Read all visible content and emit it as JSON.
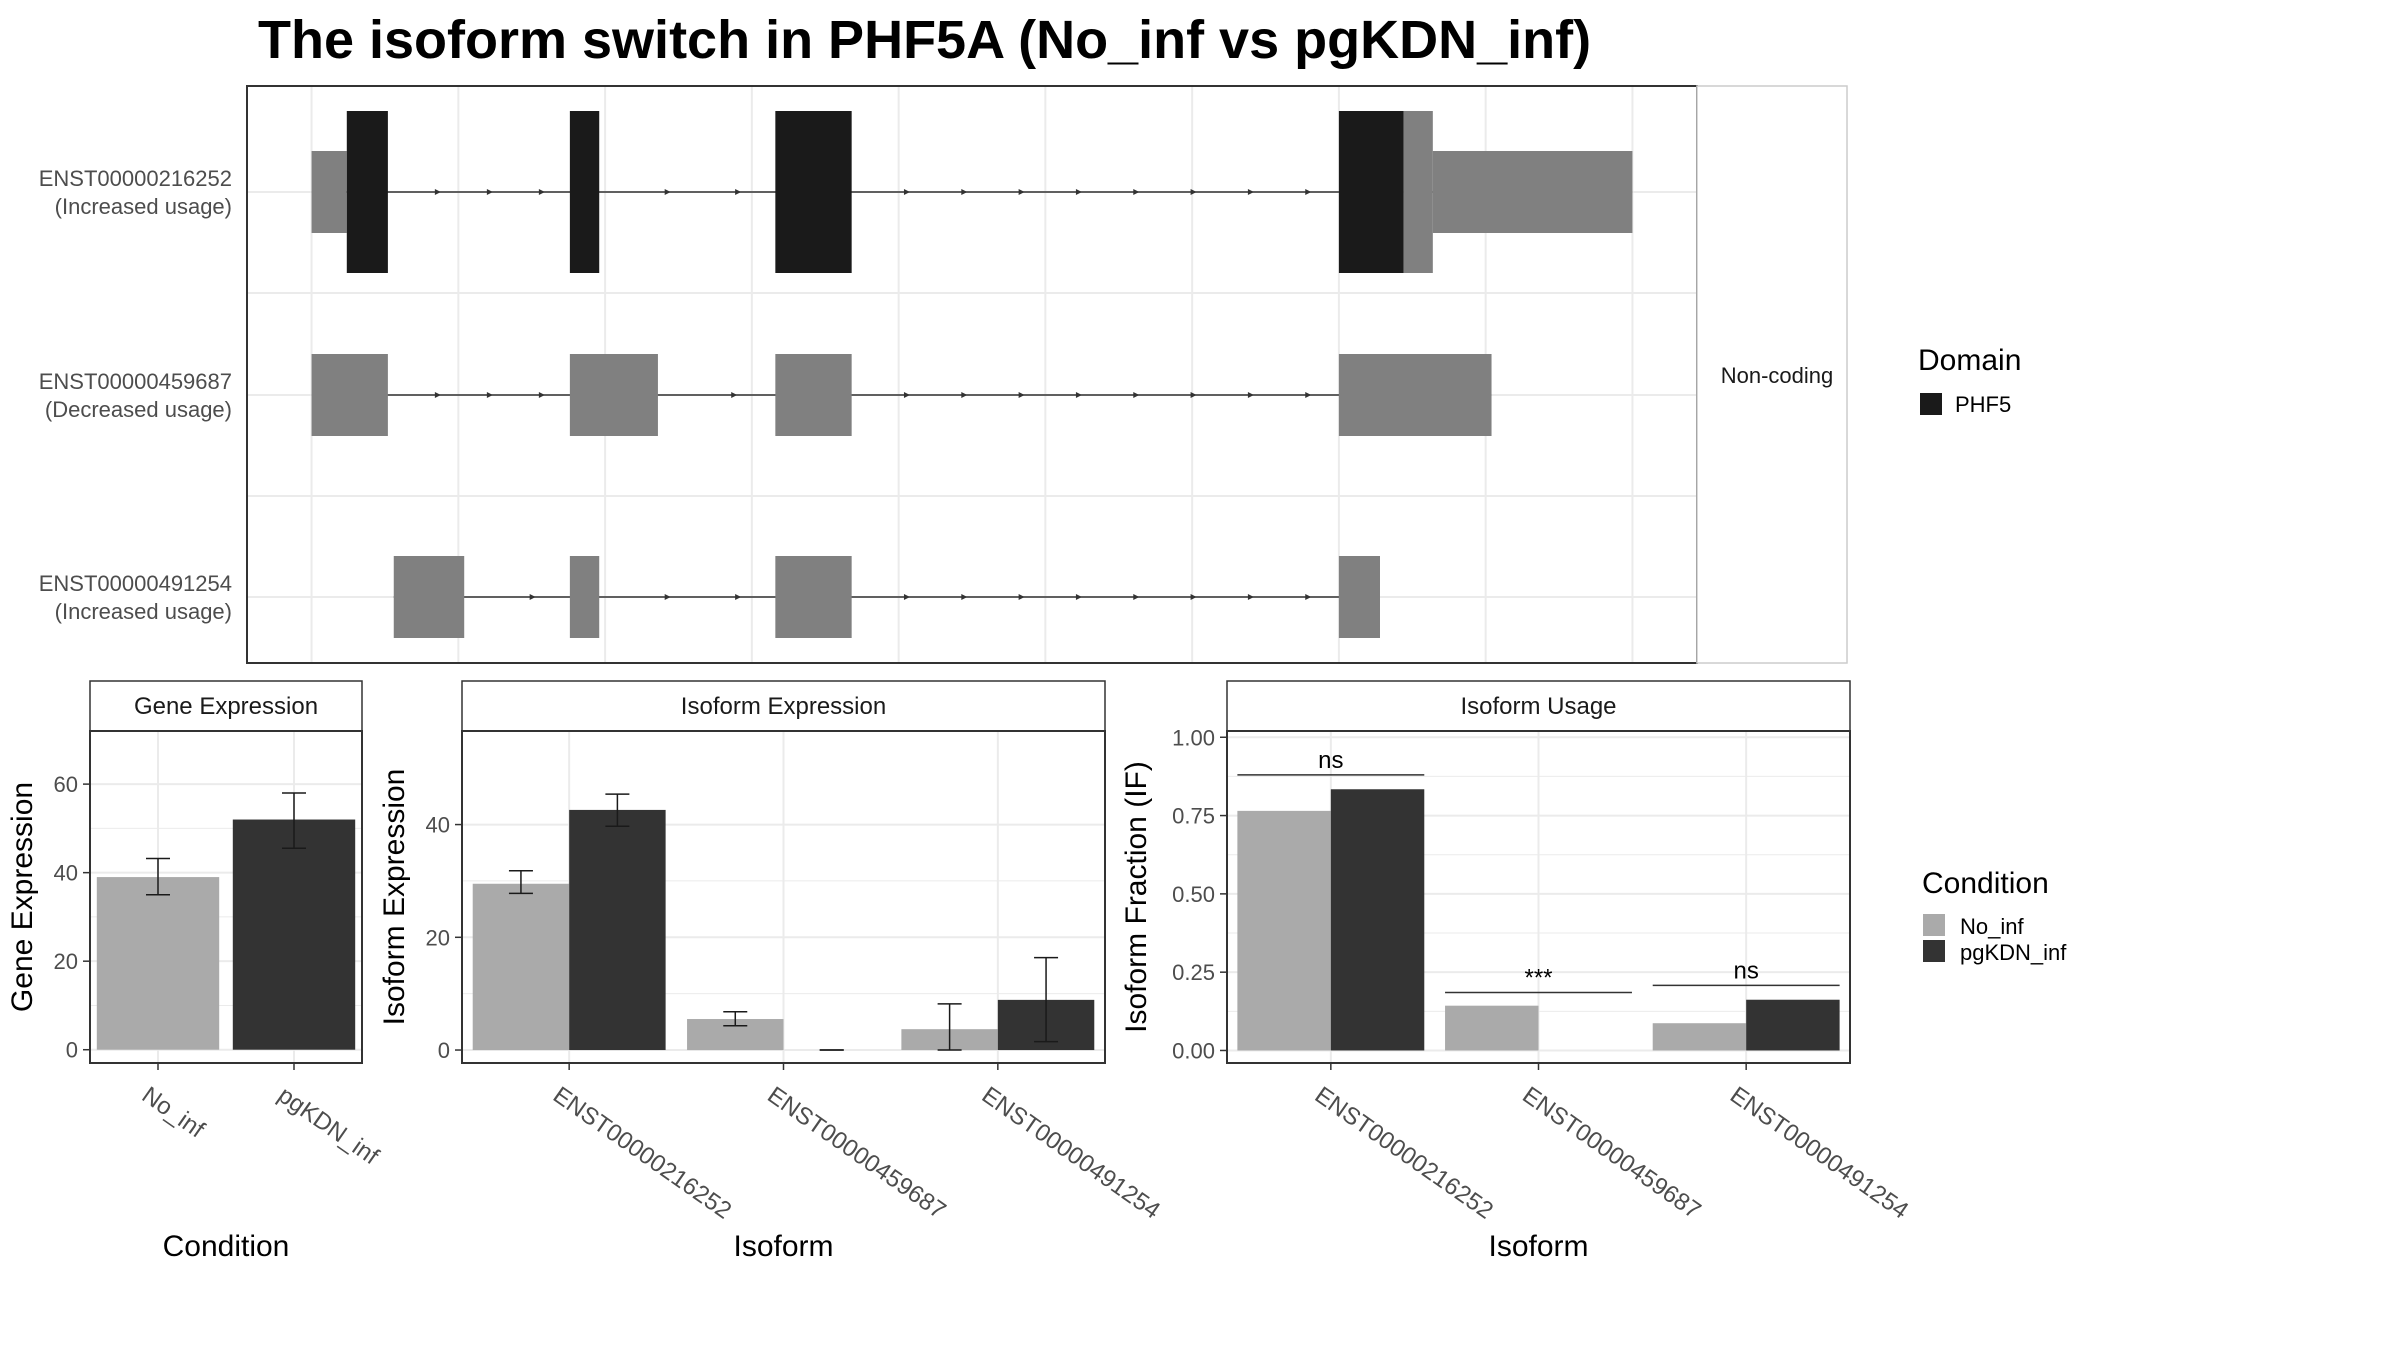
{
  "title": "The isoform switch in PHF5A (No_inf vs pgKDN_inf)",
  "colors": {
    "coding_domain": "#1a1a1a",
    "non_coding": "#808080",
    "no_inf": "#aaaaaa",
    "pgkdn_inf": "#333333",
    "panel_border": "#333333",
    "grid": "#ebebeb",
    "strip_bg": "#ffffff"
  },
  "chart_data": [
    {
      "type": "gene-structure",
      "facet_label": "Non-coding",
      "transcripts": [
        {
          "id": "ENST00000216252",
          "usage": "(Increased usage)",
          "exons": [
            {
              "start": 0.0,
              "end": 6.0,
              "kind": "utr"
            },
            {
              "start": 6.0,
              "end": 13.0,
              "kind": "domain"
            },
            {
              "start": 44.0,
              "end": 49.0,
              "kind": "domain"
            },
            {
              "start": 79.0,
              "end": 92.0,
              "kind": "domain"
            },
            {
              "start": 175.0,
              "end": 186.0,
              "kind": "domain"
            },
            {
              "start": 186.0,
              "end": 191.0,
              "kind": "cds-tail"
            },
            {
              "start": 191.0,
              "end": 225.0,
              "kind": "utr"
            }
          ]
        },
        {
          "id": "ENST00000459687",
          "usage": "(Decreased usage)",
          "exons": [
            {
              "start": 0.0,
              "end": 13.0,
              "kind": "noncoding"
            },
            {
              "start": 44.0,
              "end": 59.0,
              "kind": "noncoding"
            },
            {
              "start": 79.0,
              "end": 92.0,
              "kind": "noncoding"
            },
            {
              "start": 175.0,
              "end": 201.0,
              "kind": "noncoding"
            }
          ]
        },
        {
          "id": "ENST00000491254",
          "usage": "(Increased usage)",
          "exons": [
            {
              "start": 14.0,
              "end": 26.0,
              "kind": "noncoding"
            },
            {
              "start": 44.0,
              "end": 49.0,
              "kind": "noncoding"
            },
            {
              "start": 79.0,
              "end": 92.0,
              "kind": "noncoding"
            },
            {
              "start": 175.0,
              "end": 182.0,
              "kind": "noncoding"
            }
          ]
        }
      ],
      "xlim": [
        -11,
        236
      ],
      "legend": {
        "title": "Domain",
        "entries": [
          "PHF5"
        ]
      }
    },
    {
      "type": "bar",
      "strip": "Gene Expression",
      "ylabel": "Gene Expression",
      "xlabel": "Condition",
      "ylim": [
        -3,
        72
      ],
      "yticks": [
        0,
        20,
        40,
        60
      ],
      "categories": [
        "No_inf",
        "pgKDN_inf"
      ],
      "values": [
        39.0,
        52.0
      ],
      "errors": [
        [
          35.0,
          43.2
        ],
        [
          45.5,
          58.0
        ]
      ]
    },
    {
      "type": "bar",
      "strip": "Isoform Expression",
      "ylabel": "Isoform Expression",
      "xlabel": "Isoform",
      "ylim": [
        -2.3,
        56.6
      ],
      "yticks": [
        0,
        20,
        40
      ],
      "categories": [
        "ENST00000216252",
        "ENST00000459687",
        "ENST00000491254"
      ],
      "series": [
        {
          "name": "No_inf",
          "values": [
            29.5,
            5.5,
            3.7
          ],
          "errors": [
            [
              27.8,
              31.8
            ],
            [
              4.3,
              6.8
            ],
            [
              0.0,
              8.2
            ]
          ]
        },
        {
          "name": "pgKDN_inf",
          "values": [
            42.6,
            0.0,
            8.9
          ],
          "errors": [
            [
              39.7,
              45.4
            ],
            [
              0.0,
              0.0
            ],
            [
              1.5,
              16.4
            ]
          ]
        }
      ]
    },
    {
      "type": "bar",
      "strip": "Isoform Usage",
      "ylabel": "Isoform Fraction (IF)",
      "xlabel": "Isoform",
      "ylim": [
        -0.04,
        1.02
      ],
      "yticks": [
        0.0,
        0.25,
        0.5,
        0.75,
        1.0
      ],
      "ytick_labels": [
        "0.00",
        "0.25",
        "0.50",
        "0.75",
        "1.00"
      ],
      "categories": [
        "ENST00000216252",
        "ENST00000459687",
        "ENST00000491254"
      ],
      "series": [
        {
          "name": "No_inf",
          "values": [
            0.765,
            0.143,
            0.087
          ]
        },
        {
          "name": "pgKDN_inf",
          "values": [
            0.834,
            0.0,
            0.162
          ]
        }
      ],
      "significance": [
        {
          "label": "ns",
          "y": 0.88
        },
        {
          "label": "***",
          "y": 0.185
        },
        {
          "label": "ns",
          "y": 0.208
        }
      ],
      "legend": {
        "title": "Condition",
        "entries": [
          "No_inf",
          "pgKDN_inf"
        ]
      }
    }
  ]
}
